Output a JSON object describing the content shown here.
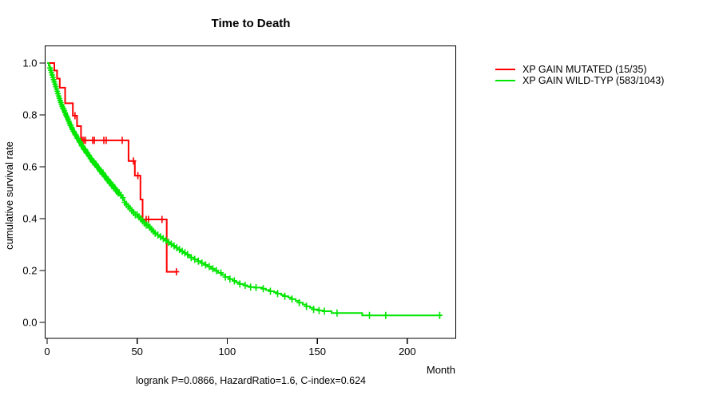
{
  "title": "Time to Death",
  "axes": {
    "x": {
      "label": "Month",
      "tick_labels": [
        "0",
        "50",
        "100",
        "150",
        "200"
      ],
      "tick_values": [
        0,
        50,
        100,
        150,
        200
      ]
    },
    "y": {
      "label": "cumulative survival rate",
      "tick_labels": [
        "0.0",
        "0.2",
        "0.4",
        "0.6",
        "0.8",
        "1.0"
      ],
      "tick_values": [
        0,
        0.2,
        0.4,
        0.6,
        0.8,
        1.0
      ]
    }
  },
  "annotation": "logrank P=0.0866, HazardRatio=1.6, C-index=0.624",
  "chart_data": {
    "type": "line",
    "subtype": "kaplan-meier-step-curves",
    "title": "Time to Death",
    "xlabel": "Month",
    "ylabel": "cumulative survival rate",
    "xlim": [
      0,
      227
    ],
    "ylim": [
      0,
      1
    ],
    "grid": false,
    "legend_position": "right-outside",
    "series": [
      {
        "name": "XP GAIN MUTATED (15/35)",
        "color": "#ff0000",
        "steps": [
          [
            0,
            1.0
          ],
          [
            4,
            0.971
          ],
          [
            5.5,
            0.94
          ],
          [
            7,
            0.905
          ],
          [
            10,
            0.845
          ],
          [
            14.3,
            0.797
          ],
          [
            16.6,
            0.757
          ],
          [
            18.8,
            0.702
          ],
          [
            45.2,
            0.622
          ],
          [
            48.7,
            0.566
          ],
          [
            51.8,
            0.474
          ],
          [
            53,
            0.397
          ],
          [
            66.4,
            0.195
          ],
          [
            71.8,
            0.195
          ]
        ],
        "censor_times": [
          15.5,
          19.5,
          20.4,
          21.3,
          25.3,
          26.2,
          31.5,
          32.8,
          41.7,
          47.9,
          50.4,
          55,
          56.3,
          63.8,
          71.8
        ]
      },
      {
        "name": "XP GAIN WILD-TYP (583/1043)",
        "color": "#00e600",
        "steps": [
          [
            0,
            1.0
          ],
          [
            0.9,
            0.99
          ],
          [
            1.4,
            0.981
          ],
          [
            1.9,
            0.972
          ],
          [
            2.3,
            0.963
          ],
          [
            2.7,
            0.954
          ],
          [
            3.1,
            0.945
          ],
          [
            3.5,
            0.936
          ],
          [
            3.9,
            0.927
          ],
          [
            4.3,
            0.918
          ],
          [
            4.7,
            0.909
          ],
          [
            5.1,
            0.9
          ],
          [
            5.5,
            0.891
          ],
          [
            5.9,
            0.882
          ],
          [
            6.3,
            0.873
          ],
          [
            6.7,
            0.864
          ],
          [
            7.1,
            0.856
          ],
          [
            7.5,
            0.848
          ],
          [
            7.9,
            0.84
          ],
          [
            8.3,
            0.832
          ],
          [
            8.8,
            0.824
          ],
          [
            9.3,
            0.816
          ],
          [
            9.8,
            0.808
          ],
          [
            10.3,
            0.8
          ],
          [
            10.8,
            0.792
          ],
          [
            11.3,
            0.784
          ],
          [
            11.8,
            0.776
          ],
          [
            12.3,
            0.768
          ],
          [
            12.8,
            0.76
          ],
          [
            13.3,
            0.752
          ],
          [
            13.8,
            0.744
          ],
          [
            14.4,
            0.737
          ],
          [
            15,
            0.73
          ],
          [
            15.6,
            0.723
          ],
          [
            16.2,
            0.716
          ],
          [
            16.8,
            0.709
          ],
          [
            17.4,
            0.702
          ],
          [
            18,
            0.695
          ],
          [
            18.6,
            0.688
          ],
          [
            19.2,
            0.681
          ],
          [
            19.8,
            0.674
          ],
          [
            20.5,
            0.667
          ],
          [
            21.2,
            0.66
          ],
          [
            21.9,
            0.653
          ],
          [
            22.6,
            0.646
          ],
          [
            23.3,
            0.639
          ],
          [
            24,
            0.632
          ],
          [
            24.7,
            0.625
          ],
          [
            25.5,
            0.618
          ],
          [
            26.3,
            0.611
          ],
          [
            27.1,
            0.604
          ],
          [
            27.9,
            0.597
          ],
          [
            28.7,
            0.59
          ],
          [
            29.5,
            0.583
          ],
          [
            30.3,
            0.576
          ],
          [
            31.1,
            0.569
          ],
          [
            31.9,
            0.562
          ],
          [
            32.7,
            0.555
          ],
          [
            33.5,
            0.548
          ],
          [
            34.3,
            0.541
          ],
          [
            35.1,
            0.534
          ],
          [
            35.9,
            0.527
          ],
          [
            36.7,
            0.52
          ],
          [
            37.6,
            0.513
          ],
          [
            38.5,
            0.506
          ],
          [
            39.4,
            0.499
          ],
          [
            40.3,
            0.49
          ],
          [
            41.2,
            0.481
          ],
          [
            42.1,
            0.472
          ],
          [
            43,
            0.463
          ],
          [
            44,
            0.455
          ],
          [
            45,
            0.447
          ],
          [
            46,
            0.439
          ],
          [
            47,
            0.431
          ],
          [
            48,
            0.423
          ],
          [
            49,
            0.415
          ],
          [
            50.2,
            0.407
          ],
          [
            51.4,
            0.399
          ],
          [
            52.6,
            0.391
          ],
          [
            53.8,
            0.383
          ],
          [
            55,
            0.375
          ],
          [
            56.2,
            0.367
          ],
          [
            57.4,
            0.359
          ],
          [
            58.6,
            0.351
          ],
          [
            59.8,
            0.344
          ],
          [
            61.2,
            0.337
          ],
          [
            62.6,
            0.33
          ],
          [
            64,
            0.323
          ],
          [
            65.4,
            0.316
          ],
          [
            66.8,
            0.309
          ],
          [
            68.2,
            0.302
          ],
          [
            69.6,
            0.295
          ],
          [
            71,
            0.288
          ],
          [
            72.5,
            0.281
          ],
          [
            74,
            0.274
          ],
          [
            75.5,
            0.268
          ],
          [
            77,
            0.262
          ],
          [
            78.5,
            0.256
          ],
          [
            80,
            0.25
          ],
          [
            81.8,
            0.243
          ],
          [
            83.6,
            0.236
          ],
          [
            85.4,
            0.229
          ],
          [
            87.2,
            0.222
          ],
          [
            89,
            0.215
          ],
          [
            91,
            0.207
          ],
          [
            93,
            0.199
          ],
          [
            95,
            0.191
          ],
          [
            97,
            0.183
          ],
          [
            99,
            0.175
          ],
          [
            101,
            0.167
          ],
          [
            103,
            0.16
          ],
          [
            105,
            0.154
          ],
          [
            107,
            0.148
          ],
          [
            109,
            0.143
          ],
          [
            111,
            0.139
          ],
          [
            113,
            0.136
          ],
          [
            115,
            0.134
          ],
          [
            119.5,
            0.13
          ],
          [
            121.5,
            0.125
          ],
          [
            123.5,
            0.12
          ],
          [
            126,
            0.116
          ],
          [
            128,
            0.111
          ],
          [
            130,
            0.106
          ],
          [
            132,
            0.101
          ],
          [
            134,
            0.096
          ],
          [
            136,
            0.09
          ],
          [
            138,
            0.083
          ],
          [
            140,
            0.076
          ],
          [
            142,
            0.069
          ],
          [
            144,
            0.062
          ],
          [
            146,
            0.056
          ],
          [
            148,
            0.05
          ],
          [
            150.5,
            0.046
          ],
          [
            153,
            0.043
          ],
          [
            158,
            0.036
          ],
          [
            175,
            0.027
          ],
          [
            219,
            0.027
          ]
        ],
        "censor_times": [
          1.6,
          2,
          2.4,
          2.8,
          3.2,
          3.6,
          4,
          4.4,
          4.8,
          5.2,
          5.6,
          6,
          6.4,
          6.8,
          7.2,
          7.6,
          8,
          8.4,
          8.8,
          9.2,
          9.6,
          10,
          10.4,
          10.8,
          11.2,
          11.6,
          12,
          12.4,
          12.8,
          13.2,
          13.6,
          14,
          14.4,
          14.8,
          15.2,
          15.6,
          16,
          16.4,
          16.8,
          17.2,
          17.6,
          18,
          18.4,
          18.8,
          19.2,
          19.6,
          20,
          20.5,
          21,
          21.5,
          22,
          22.5,
          23,
          23.5,
          24,
          24.5,
          25,
          25.5,
          26,
          26.5,
          27,
          27.5,
          28,
          28.5,
          29,
          29.5,
          30,
          30.5,
          31,
          31.5,
          32,
          32.5,
          33,
          33.5,
          34,
          34.5,
          35,
          35.5,
          36,
          36.5,
          37,
          37.5,
          38,
          38.5,
          39,
          39.5,
          40,
          41,
          42,
          43,
          44,
          45,
          46,
          47,
          48,
          49,
          50,
          51,
          52,
          53,
          54,
          55,
          56,
          57,
          58,
          59,
          60,
          61.5,
          63,
          64.5,
          66,
          67.5,
          69,
          70.5,
          72,
          73.5,
          75,
          76.5,
          78,
          80,
          82,
          84,
          86,
          88,
          90,
          92,
          94,
          96.5,
          99,
          101.5,
          104,
          107,
          110,
          113,
          116,
          120,
          124,
          128,
          132,
          136,
          140,
          144,
          148,
          151,
          154,
          161,
          179,
          188,
          218
        ]
      }
    ]
  }
}
